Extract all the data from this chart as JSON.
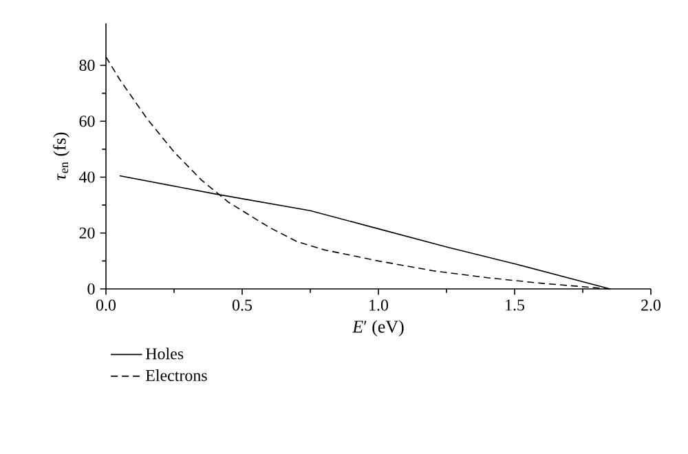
{
  "chart_data": {
    "type": "line",
    "xlabel": "*E*′ (eV)",
    "ylabel": "*τ*$_{en}$ (fs)",
    "xlim": [
      0,
      2.0
    ],
    "ylim": [
      0,
      95
    ],
    "xticks": [
      {
        "value": 0,
        "label": "0.0"
      },
      0.5,
      {
        "value": 1,
        "label": "1.0"
      },
      1.5,
      {
        "value": 2,
        "label": "2.0"
      }
    ],
    "yticks": [
      0,
      20,
      40,
      60,
      80
    ],
    "legend": "bottom left",
    "grid": false,
    "marker": "none",
    "series": [
      {
        "name": "Holes",
        "color": "#000000",
        "line_style": "solid",
        "x": [
          0.05,
          0.4,
          0.75,
          1.0,
          1.25,
          1.5,
          1.85
        ],
        "values": [
          40.5,
          34,
          28,
          21.5,
          15,
          9,
          0
        ]
      },
      {
        "name": "Electrons",
        "color": "#000000",
        "line_style": "dashed",
        "x": [
          0,
          0.05,
          0.15,
          0.25,
          0.35,
          0.45,
          0.6,
          0.7,
          0.8,
          1.0,
          1.2,
          1.4,
          1.6,
          1.75,
          1.85
        ],
        "values": [
          83,
          75,
          61,
          49,
          39,
          31,
          22,
          17,
          14,
          10,
          6.5,
          4,
          2,
          0.8,
          0
        ]
      }
    ]
  }
}
